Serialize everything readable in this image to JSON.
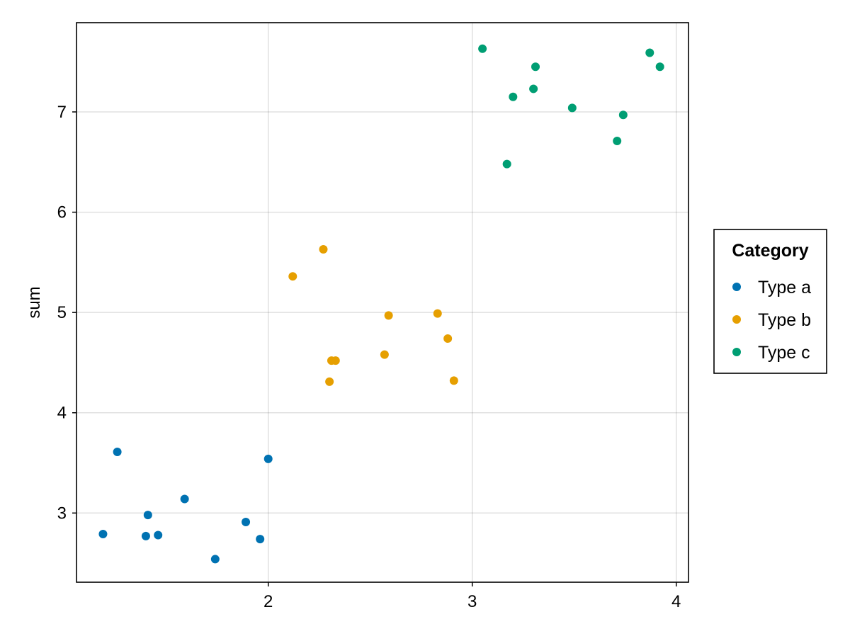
{
  "chart_data": {
    "type": "scatter",
    "title": "",
    "xlabel": "",
    "ylabel": "sum",
    "xlim": [
      1.06,
      4.06
    ],
    "ylim": [
      2.31,
      7.89
    ],
    "xticks": [
      2,
      3,
      4
    ],
    "yticks": [
      3,
      4,
      5,
      6,
      7
    ],
    "grid": true,
    "legend": {
      "title": "Category",
      "placement": "right"
    },
    "series": [
      {
        "name": "Type a",
        "color": "#0072b2",
        "points": [
          {
            "x": 1.19,
            "y": 2.79
          },
          {
            "x": 1.26,
            "y": 3.61
          },
          {
            "x": 1.4,
            "y": 2.77
          },
          {
            "x": 1.41,
            "y": 2.98
          },
          {
            "x": 1.46,
            "y": 2.78
          },
          {
            "x": 1.59,
            "y": 3.14
          },
          {
            "x": 1.74,
            "y": 2.54
          },
          {
            "x": 1.89,
            "y": 2.91
          },
          {
            "x": 1.96,
            "y": 2.74
          },
          {
            "x": 2.0,
            "y": 3.54
          }
        ]
      },
      {
        "name": "Type b",
        "color": "#e69f00",
        "points": [
          {
            "x": 2.12,
            "y": 5.36
          },
          {
            "x": 2.27,
            "y": 5.63
          },
          {
            "x": 2.3,
            "y": 4.31
          },
          {
            "x": 2.31,
            "y": 4.52
          },
          {
            "x": 2.33,
            "y": 4.52
          },
          {
            "x": 2.57,
            "y": 4.58
          },
          {
            "x": 2.59,
            "y": 4.97
          },
          {
            "x": 2.83,
            "y": 4.99
          },
          {
            "x": 2.88,
            "y": 4.74
          },
          {
            "x": 2.91,
            "y": 4.32
          }
        ]
      },
      {
        "name": "Type c",
        "color": "#009e73",
        "points": [
          {
            "x": 3.05,
            "y": 7.63
          },
          {
            "x": 3.17,
            "y": 6.48
          },
          {
            "x": 3.2,
            "y": 7.15
          },
          {
            "x": 3.3,
            "y": 7.23
          },
          {
            "x": 3.31,
            "y": 7.45
          },
          {
            "x": 3.49,
            "y": 7.04
          },
          {
            "x": 3.71,
            "y": 6.71
          },
          {
            "x": 3.74,
            "y": 6.97
          },
          {
            "x": 3.87,
            "y": 7.59
          },
          {
            "x": 3.92,
            "y": 7.45
          }
        ]
      }
    ]
  }
}
